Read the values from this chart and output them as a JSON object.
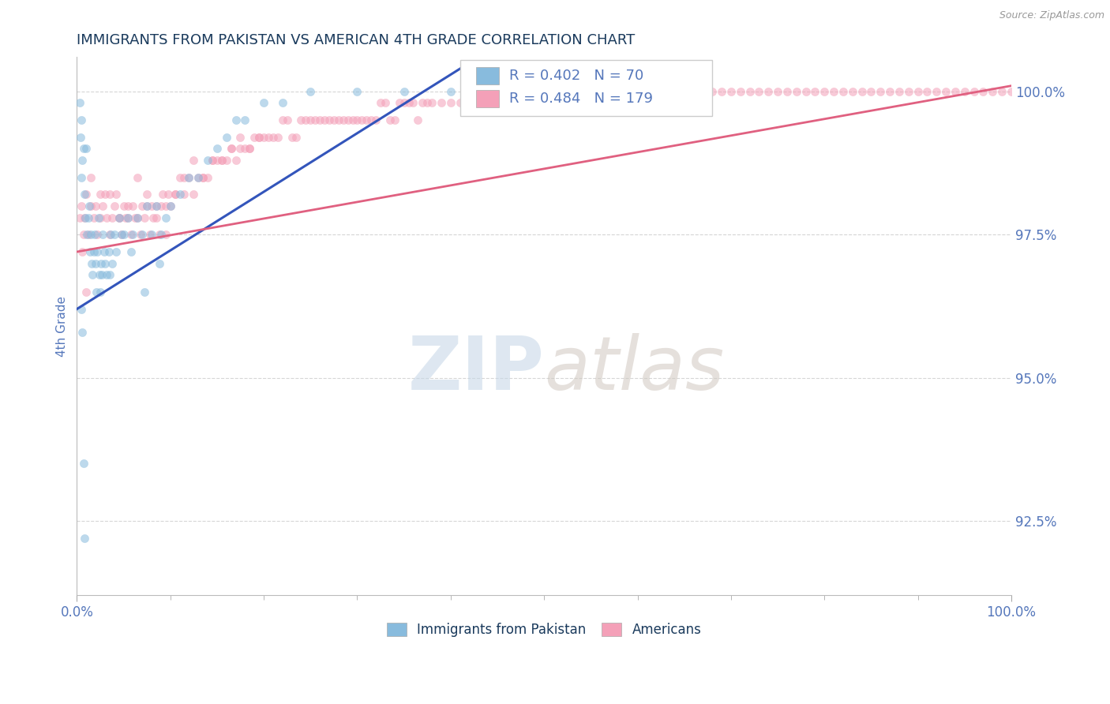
{
  "title": "IMMIGRANTS FROM PAKISTAN VS AMERICAN 4TH GRADE CORRELATION CHART",
  "source_text": "Source: ZipAtlas.com",
  "ylabel": "4th Grade",
  "yaxis_values": [
    92.5,
    95.0,
    97.5,
    100.0
  ],
  "blue_color": "#88bbdd",
  "pink_color": "#f4a0b8",
  "blue_line_color": "#3355bb",
  "pink_line_color": "#e06080",
  "watermark_color": "#d8e4f0",
  "background_color": "#ffffff",
  "xlim": [
    0,
    100
  ],
  "ylim": [
    91.2,
    100.6
  ],
  "scatter_size": 55,
  "scatter_alpha": 0.55,
  "title_color": "#1a3a5c",
  "axis_label_color": "#5577bb",
  "tick_color": "#5577bb",
  "legend_R1": "R = 0.402",
  "legend_N1": "N = 70",
  "legend_R2": "R = 0.484",
  "legend_N2": "N = 179",
  "blue_scatter_x": [
    0.3,
    0.4,
    0.5,
    0.5,
    0.6,
    0.7,
    0.8,
    0.9,
    1.0,
    1.1,
    1.2,
    1.3,
    1.4,
    1.5,
    1.6,
    1.7,
    1.8,
    1.9,
    2.0,
    2.1,
    2.2,
    2.3,
    2.4,
    2.5,
    2.6,
    2.7,
    2.8,
    2.9,
    3.0,
    3.2,
    3.4,
    3.6,
    3.8,
    4.0,
    4.2,
    4.5,
    4.8,
    5.0,
    5.5,
    6.0,
    6.5,
    7.0,
    7.5,
    8.0,
    8.5,
    9.0,
    9.5,
    10.0,
    11.0,
    12.0,
    13.0,
    14.0,
    15.0,
    16.0,
    17.0,
    18.0,
    20.0,
    22.0,
    25.0,
    30.0,
    35.0,
    40.0,
    3.5,
    5.8,
    7.2,
    8.8,
    0.5,
    0.6,
    0.7,
    0.8
  ],
  "blue_scatter_y": [
    99.8,
    99.2,
    99.5,
    98.5,
    98.8,
    99.0,
    98.2,
    97.8,
    99.0,
    97.5,
    97.8,
    98.0,
    97.2,
    97.5,
    97.0,
    96.8,
    97.2,
    97.5,
    97.0,
    96.5,
    97.2,
    97.8,
    96.8,
    96.5,
    97.0,
    96.8,
    97.5,
    97.2,
    97.0,
    96.8,
    97.2,
    97.5,
    97.0,
    97.5,
    97.2,
    97.8,
    97.5,
    97.5,
    97.8,
    97.5,
    97.8,
    97.5,
    98.0,
    97.5,
    98.0,
    97.5,
    97.8,
    98.0,
    98.2,
    98.5,
    98.5,
    98.8,
    99.0,
    99.2,
    99.5,
    99.5,
    99.8,
    99.8,
    100.0,
    100.0,
    100.0,
    100.0,
    96.8,
    97.2,
    96.5,
    97.0,
    96.2,
    95.8,
    93.5,
    92.2
  ],
  "blue_line_x": [
    0,
    42
  ],
  "blue_line_y": [
    96.2,
    100.5
  ],
  "pink_scatter_x": [
    0.3,
    0.5,
    0.7,
    0.8,
    1.0,
    1.2,
    1.5,
    1.8,
    2.0,
    2.2,
    2.5,
    2.8,
    3.0,
    3.2,
    3.5,
    3.8,
    4.0,
    4.2,
    4.5,
    4.8,
    5.0,
    5.2,
    5.5,
    5.8,
    6.0,
    6.2,
    6.5,
    6.8,
    7.0,
    7.2,
    7.5,
    7.8,
    8.0,
    8.2,
    8.5,
    8.8,
    9.0,
    9.2,
    9.5,
    9.8,
    10.0,
    10.5,
    11.0,
    11.5,
    12.0,
    12.5,
    13.0,
    13.5,
    14.0,
    14.5,
    15.0,
    15.5,
    16.0,
    16.5,
    17.0,
    17.5,
    18.0,
    18.5,
    19.0,
    19.5,
    20.0,
    21.0,
    22.0,
    23.0,
    24.0,
    25.0,
    26.0,
    27.0,
    28.0,
    29.0,
    30.0,
    31.0,
    32.0,
    33.0,
    34.0,
    35.0,
    36.0,
    37.0,
    38.0,
    39.0,
    40.0,
    41.0,
    42.0,
    43.0,
    44.0,
    45.0,
    46.0,
    47.0,
    48.0,
    49.0,
    50.0,
    51.0,
    52.0,
    53.0,
    54.0,
    55.0,
    56.0,
    57.0,
    58.0,
    59.0,
    60.0,
    61.0,
    62.0,
    63.0,
    64.0,
    65.0,
    66.0,
    67.0,
    68.0,
    69.0,
    70.0,
    71.0,
    72.0,
    73.0,
    74.0,
    75.0,
    76.0,
    77.0,
    78.0,
    79.0,
    80.0,
    81.0,
    82.0,
    83.0,
    84.0,
    85.0,
    86.0,
    87.0,
    88.0,
    89.0,
    90.0,
    91.0,
    92.0,
    93.0,
    94.0,
    95.0,
    96.0,
    97.0,
    98.0,
    99.0,
    100.0,
    1.5,
    2.5,
    3.5,
    4.5,
    5.5,
    6.5,
    7.5,
    8.5,
    9.5,
    10.5,
    11.5,
    12.5,
    13.5,
    14.5,
    15.5,
    16.5,
    17.5,
    18.5,
    19.5,
    20.5,
    21.5,
    22.5,
    23.5,
    24.5,
    25.5,
    26.5,
    27.5,
    28.5,
    29.5,
    30.5,
    31.5,
    32.5,
    33.5,
    34.5,
    35.5,
    36.5,
    37.5,
    0.6,
    1.0
  ],
  "pink_scatter_y": [
    97.8,
    98.0,
    97.5,
    97.8,
    98.2,
    97.5,
    98.0,
    97.8,
    98.0,
    97.5,
    97.8,
    98.0,
    98.2,
    97.8,
    98.2,
    97.8,
    98.0,
    98.2,
    97.8,
    97.5,
    98.0,
    97.8,
    97.8,
    97.5,
    98.0,
    97.8,
    97.8,
    97.5,
    98.0,
    97.8,
    98.0,
    97.5,
    98.0,
    97.8,
    98.0,
    97.5,
    98.0,
    98.2,
    98.0,
    98.2,
    98.0,
    98.2,
    98.5,
    98.2,
    98.5,
    98.2,
    98.5,
    98.5,
    98.5,
    98.8,
    98.8,
    98.8,
    98.8,
    99.0,
    98.8,
    99.0,
    99.0,
    99.0,
    99.2,
    99.2,
    99.2,
    99.2,
    99.5,
    99.2,
    99.5,
    99.5,
    99.5,
    99.5,
    99.5,
    99.5,
    99.5,
    99.5,
    99.5,
    99.8,
    99.5,
    99.8,
    99.8,
    99.8,
    99.8,
    99.8,
    99.8,
    99.8,
    99.8,
    100.0,
    99.8,
    100.0,
    99.8,
    100.0,
    100.0,
    100.0,
    100.0,
    100.0,
    100.0,
    100.0,
    100.0,
    100.0,
    100.0,
    100.0,
    100.0,
    100.0,
    100.0,
    100.0,
    100.0,
    100.0,
    100.0,
    100.0,
    100.0,
    100.0,
    100.0,
    100.0,
    100.0,
    100.0,
    100.0,
    100.0,
    100.0,
    100.0,
    100.0,
    100.0,
    100.0,
    100.0,
    100.0,
    100.0,
    100.0,
    100.0,
    100.0,
    100.0,
    100.0,
    100.0,
    100.0,
    100.0,
    100.0,
    100.0,
    100.0,
    100.0,
    100.0,
    100.0,
    100.0,
    100.0,
    100.0,
    100.0,
    100.0,
    98.5,
    98.2,
    97.5,
    97.8,
    98.0,
    98.5,
    98.2,
    97.8,
    97.5,
    98.2,
    98.5,
    98.8,
    98.5,
    98.8,
    98.8,
    99.0,
    99.2,
    99.0,
    99.2,
    99.2,
    99.2,
    99.5,
    99.2,
    99.5,
    99.5,
    99.5,
    99.5,
    99.5,
    99.5,
    99.5,
    99.5,
    99.8,
    99.5,
    99.8,
    99.8,
    99.5,
    99.8,
    97.2,
    96.5
  ],
  "pink_line_x": [
    0,
    100
  ],
  "pink_line_y": [
    97.2,
    100.1
  ]
}
